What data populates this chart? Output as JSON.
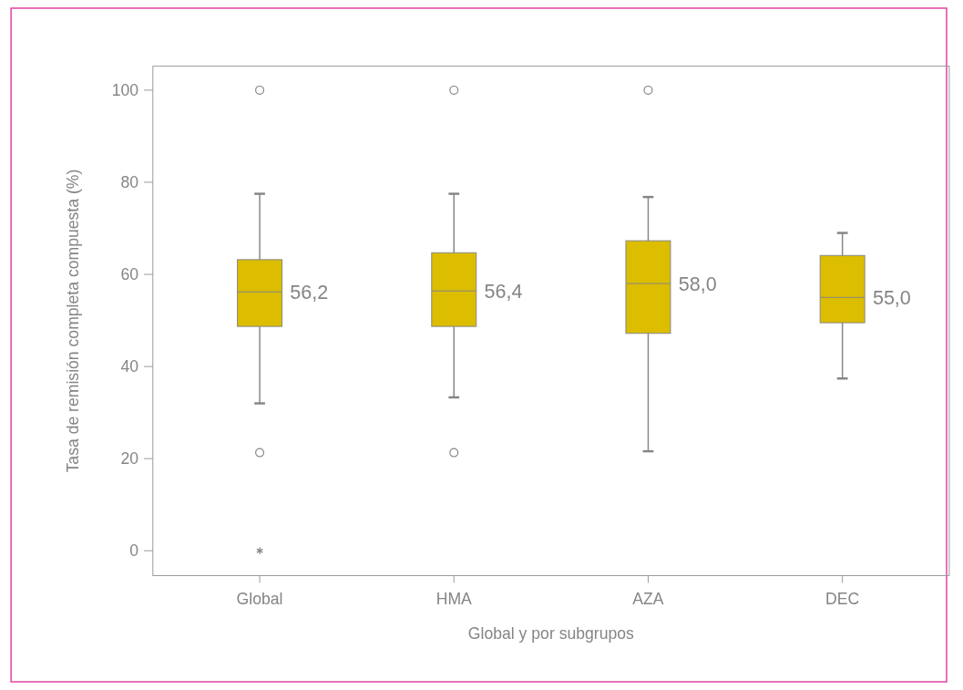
{
  "chart_data": {
    "type": "box",
    "xlabel": "Global y por subgrupos",
    "ylabel": "Tasa de remisión completa compuesta (%)",
    "categories": [
      "Global",
      "HMA",
      "AZA",
      "DEC"
    ],
    "color": "#dcbd00",
    "boxes": [
      {
        "low": 32,
        "q1": 48.7,
        "median": 56.2,
        "q3": 63.2,
        "high": 77.5,
        "outliers": [
          100,
          21.3,
          0
        ]
      },
      {
        "low": 33.3,
        "q1": 48.7,
        "median": 56.4,
        "q3": 64.7,
        "high": 77.5,
        "outliers": [
          100,
          21.3
        ]
      },
      {
        "low": 21.6,
        "q1": 47.2,
        "median": 58.0,
        "q3": 67.3,
        "high": 76.8,
        "outliers": [
          100
        ]
      },
      {
        "low": 37.4,
        "q1": 49.5,
        "median": 55.0,
        "q3": 64.1,
        "high": 69
      }
    ],
    "value_labels": [
      "56,2",
      "56,4",
      "58,0",
      "55,0"
    ],
    "ylim": [
      -5.4,
      105.2
    ],
    "yticks": [
      0,
      20,
      40,
      60,
      80,
      100
    ],
    "grid": false
  }
}
